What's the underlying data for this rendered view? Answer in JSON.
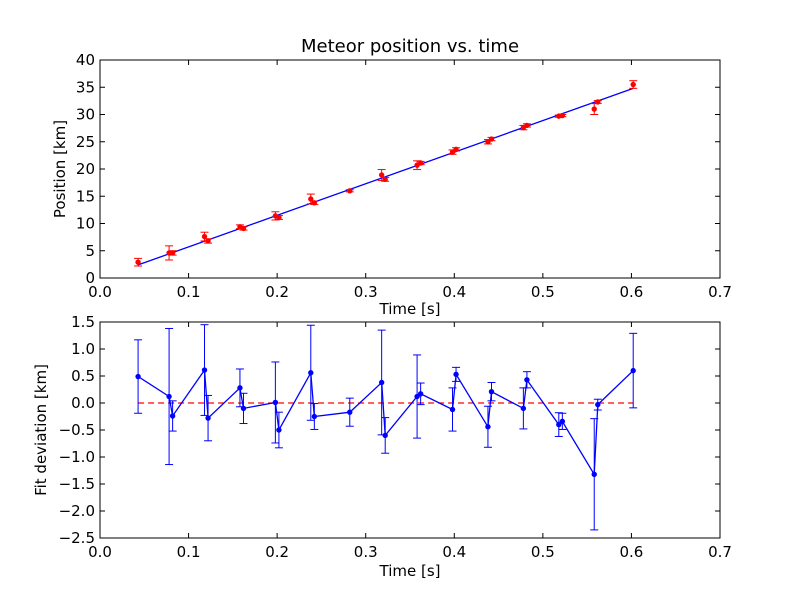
{
  "chart_data": [
    {
      "type": "scatter",
      "title": "Meteor position vs. time",
      "xlabel": "Time [s]",
      "ylabel": "Position [km]",
      "xlim": [
        0,
        0.7
      ],
      "ylim": [
        0,
        40
      ],
      "xticks": [
        "0.0",
        "0.1",
        "0.2",
        "0.3",
        "0.4",
        "0.5",
        "0.6",
        "0.7"
      ],
      "yticks": [
        "0",
        "5",
        "10",
        "15",
        "20",
        "25",
        "30",
        "35",
        "40"
      ],
      "grid": false,
      "series": [
        {
          "kind": "errorbar-points",
          "color": "#ff0000",
          "x": [
            0.043,
            0.078,
            0.082,
            0.118,
            0.122,
            0.158,
            0.162,
            0.198,
            0.202,
            0.238,
            0.242,
            0.282,
            0.318,
            0.322,
            0.358,
            0.362,
            0.398,
            0.402,
            0.438,
            0.442,
            0.478,
            0.482,
            0.518,
            0.522,
            0.558,
            0.562,
            0.602
          ],
          "y": [
            2.9,
            4.6,
            4.6,
            7.6,
            6.8,
            9.4,
            9.1,
            11.4,
            11.1,
            14.5,
            13.8,
            16.0,
            18.9,
            18.1,
            20.7,
            21.1,
            23.1,
            23.6,
            25.0,
            25.5,
            27.6,
            28.0,
            29.7,
            29.8,
            31.0,
            32.3,
            35.5
          ],
          "yerr": [
            0.7,
            1.3,
            0.4,
            0.8,
            0.4,
            0.35,
            0.3,
            0.75,
            0.35,
            0.9,
            0.3,
            0.2,
            1.0,
            0.35,
            0.8,
            0.3,
            0.4,
            0.3,
            0.4,
            0.3,
            0.4,
            0.3,
            0.2,
            0.2,
            1.0,
            0.25,
            0.7
          ]
        },
        {
          "kind": "fit-line",
          "color": "#0000ff",
          "x": [
            0.043,
            0.602
          ],
          "y": [
            2.4,
            34.8
          ]
        }
      ]
    },
    {
      "type": "line",
      "title": "",
      "xlabel": "Time [s]",
      "ylabel": "Fit deviation [km]",
      "xlim": [
        0,
        0.7
      ],
      "ylim": [
        -2.5,
        1.5
      ],
      "xticks": [
        "0.0",
        "0.1",
        "0.2",
        "0.3",
        "0.4",
        "0.5",
        "0.6",
        "0.7"
      ],
      "yticks": [
        "−2.5",
        "−2.0",
        "−1.5",
        "−1.0",
        "−0.5",
        "0.0",
        "0.5",
        "1.0",
        "1.5"
      ],
      "grid": false,
      "reference_line": {
        "y": 0,
        "style": "dashed",
        "color": "#ff0000"
      },
      "series": [
        {
          "kind": "line-errorbar",
          "color": "#0000ff",
          "x": [
            0.043,
            0.078,
            0.082,
            0.118,
            0.122,
            0.158,
            0.162,
            0.198,
            0.202,
            0.238,
            0.242,
            0.282,
            0.318,
            0.322,
            0.358,
            0.362,
            0.398,
            0.402,
            0.438,
            0.442,
            0.478,
            0.482,
            0.518,
            0.522,
            0.558,
            0.562,
            0.602
          ],
          "y": [
            0.49,
            0.12,
            -0.24,
            0.61,
            -0.28,
            0.28,
            -0.1,
            0.01,
            -0.5,
            0.56,
            -0.25,
            -0.17,
            0.38,
            -0.6,
            0.12,
            0.17,
            -0.12,
            0.53,
            -0.44,
            0.21,
            -0.1,
            0.43,
            -0.4,
            -0.34,
            -1.32,
            -0.03,
            0.6
          ],
          "yerr": [
            0.68,
            1.26,
            0.28,
            0.84,
            0.42,
            0.35,
            0.28,
            0.75,
            0.33,
            0.88,
            0.24,
            0.26,
            0.97,
            0.33,
            0.77,
            0.2,
            0.4,
            0.13,
            0.38,
            0.17,
            0.38,
            0.15,
            0.22,
            0.15,
            1.03,
            0.1,
            0.69
          ]
        }
      ]
    }
  ]
}
